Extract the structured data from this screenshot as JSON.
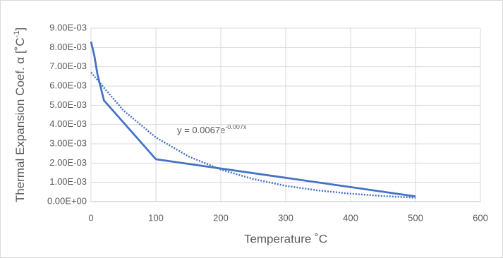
{
  "chart_data": {
    "type": "line",
    "x_label": "Temperature ˚C",
    "y_label": "Thermal Expansion Coef. α [˚C",
    "y_label_sup": "-1",
    "y_label_end": "]",
    "annotation": "y = 0.0067e",
    "annotation_sup": "-0.007x",
    "series": [
      {
        "color": "#4472c4",
        "style": "solid",
        "x": [
          0,
          5,
          10,
          20,
          100,
          500
        ],
        "values": [
          0.0083,
          0.0076,
          0.0066,
          0.00525,
          0.0022,
          0.00027
        ]
      },
      {
        "color": "#4472c4",
        "style": "dotted",
        "x": [
          0,
          50,
          100,
          150,
          200,
          250,
          300,
          350,
          400,
          450,
          500
        ],
        "values": [
          0.0067,
          0.00473,
          0.00333,
          0.00235,
          0.00166,
          0.00117,
          0.00082,
          0.00058,
          0.00041,
          0.00029,
          0.0002
        ]
      }
    ],
    "xlim": [
      0,
      600
    ],
    "xticks": [
      0,
      100,
      200,
      300,
      400,
      500,
      600
    ],
    "ylim": [
      0,
      0.009
    ],
    "yticks": [
      {
        "value": 0,
        "label": "0.00E+00"
      },
      {
        "value": 0.001,
        "label": "1.00E-03"
      },
      {
        "value": 0.002,
        "label": "2.00E-03"
      },
      {
        "value": 0.003,
        "label": "3.00E-03"
      },
      {
        "value": 0.004,
        "label": "4.00E-03"
      },
      {
        "value": 0.005,
        "label": "5.00E-03"
      },
      {
        "value": 0.006,
        "label": "6.00E-03"
      },
      {
        "value": 0.007,
        "label": "7.00E-03"
      },
      {
        "value": 0.008,
        "label": "8.00E-03"
      },
      {
        "value": 0.009,
        "label": "9.00E-03"
      }
    ],
    "grid": true
  }
}
